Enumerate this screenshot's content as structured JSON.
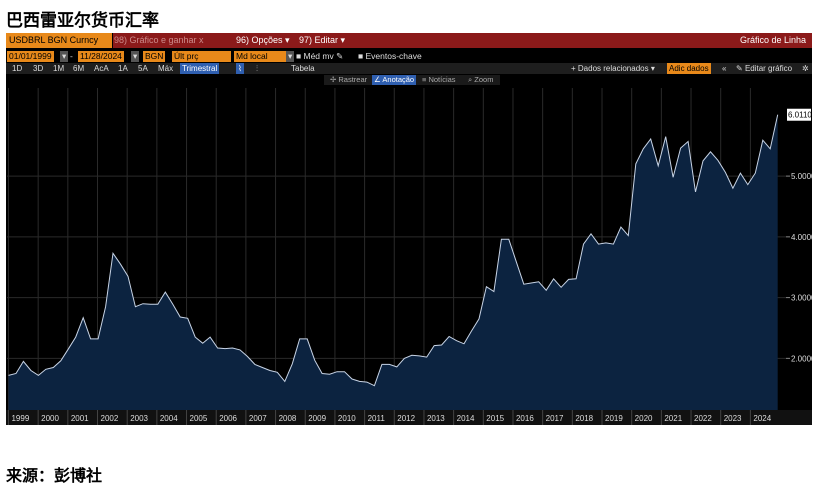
{
  "page": {
    "title": "巴西雷亚尔货币汇率",
    "source": "来源：彭博社"
  },
  "toolbar": {
    "ticker": "USDBRL BGN Curncy",
    "grafico_hint": "98) Gráfico e ganhar x",
    "opcoes": "96) Opções ▾",
    "editar": "97) Editar ▾",
    "chart_type": "Gráfico de Linha"
  },
  "fields": {
    "start_date": "01/01/1999",
    "end_date": "11/28/2024",
    "source_code": "BGN",
    "price_field": "Últ prç",
    "currency": "Md local",
    "moving_avg": "Méd mv",
    "events": "Eventos-chave"
  },
  "periods": [
    "1D",
    "3D",
    "1M",
    "6M",
    "AcA",
    "1A",
    "5A",
    "Máx"
  ],
  "frequency": "Trimestral",
  "table_label": "Tabela",
  "related": "+ Dados relacionados ▾",
  "add_data": "Adic dados",
  "edit_chart": "Editar gráfico",
  "tools": {
    "rastrear": "Rastrear",
    "anotacao": "Anotação",
    "noticias": "Notícias",
    "zoom": "Zoom"
  },
  "chart_data": {
    "type": "area",
    "x_start": 1999.0,
    "x_end": 2024.92,
    "xlim": [
      1998.95,
      2025.2
    ],
    "ylim": [
      1.15,
      6.45
    ],
    "y_ticks": [
      2.0,
      3.0,
      4.0,
      5.0
    ],
    "y_tick_labels": [
      "2.0000",
      "3.0000",
      "4.0000",
      "5.0000"
    ],
    "x_tick_labels": [
      "1999",
      "2000",
      "2001",
      "2002",
      "2003",
      "2004",
      "2005",
      "2006",
      "2007",
      "2008",
      "2009",
      "2010",
      "2011",
      "2012",
      "2013",
      "2014",
      "2015",
      "2016",
      "2017",
      "2018",
      "2019",
      "2020",
      "2021",
      "2022",
      "2023",
      "2024"
    ],
    "last_value_label": "6.0110",
    "grid": true,
    "colors": {
      "fill": "#0c2340",
      "line": "#c8d4e6",
      "grid": "#2a2a2a",
      "axis_text": "#dddddd"
    },
    "values": [
      1.72,
      1.75,
      1.95,
      1.8,
      1.72,
      1.82,
      1.85,
      1.96,
      2.15,
      2.35,
      2.67,
      2.32,
      2.32,
      2.85,
      3.73,
      3.55,
      3.35,
      2.85,
      2.9,
      2.89,
      2.89,
      3.09,
      2.89,
      2.68,
      2.66,
      2.35,
      2.25,
      2.35,
      2.17,
      2.16,
      2.17,
      2.14,
      2.03,
      1.9,
      1.85,
      1.8,
      1.77,
      1.62,
      1.91,
      2.32,
      2.32,
      1.97,
      1.75,
      1.74,
      1.78,
      1.78,
      1.66,
      1.62,
      1.61,
      1.55,
      1.9,
      1.9,
      1.86,
      2.0,
      2.05,
      2.04,
      2.02,
      2.21,
      2.22,
      2.36,
      2.29,
      2.24,
      2.45,
      2.65,
      3.18,
      3.1,
      3.96,
      3.96,
      3.59,
      3.22,
      3.24,
      3.26,
      3.12,
      3.31,
      3.17,
      3.3,
      3.31,
      3.88,
      4.05,
      3.88,
      3.9,
      3.88,
      4.16,
      4.02,
      5.2,
      5.45,
      5.61,
      5.17,
      5.65,
      4.98,
      5.46,
      5.57,
      4.74,
      5.25,
      5.4,
      5.26,
      5.06,
      4.8,
      5.05,
      4.86,
      5.05,
      5.59,
      5.45,
      6.01
    ]
  }
}
